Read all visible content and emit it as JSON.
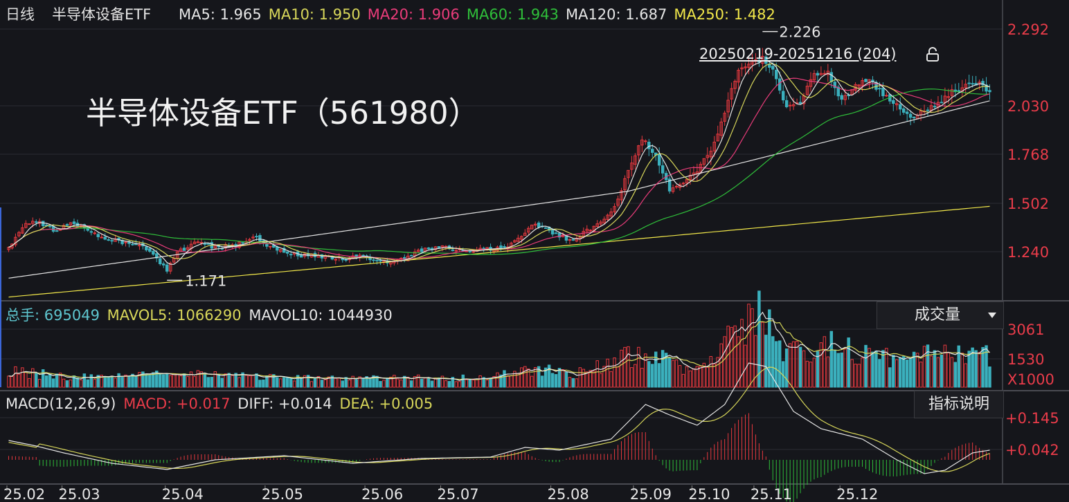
{
  "header": {
    "period": "日线",
    "name": "半导体设备ETF",
    "ma": [
      {
        "label": "MA5: ",
        "value": "1.965",
        "color": "#e6e6e6"
      },
      {
        "label": "MA10: ",
        "value": "1.950",
        "color": "#d8d75a"
      },
      {
        "label": "MA20: ",
        "value": "1.906",
        "color": "#ea3c7a"
      },
      {
        "label": "MA60: ",
        "value": "1.943",
        "color": "#2fbf3a"
      },
      {
        "label": "MA120: ",
        "value": "1.687",
        "color": "#e6e6e6"
      },
      {
        "label": "MA250: ",
        "value": "1.482",
        "color": "#f2e84a"
      }
    ]
  },
  "overlay_title": "半导体设备ETF（561980）",
  "range_label": "20250219-20251216 (204)",
  "volume_header": {
    "total_label": "总手: ",
    "total_value": "695049",
    "mavol5_label": "MAVOL5: ",
    "mavol5_value": "1066290",
    "mavol10_label": "MAVOL10: ",
    "mavol10_value": "1044930"
  },
  "volume_dropdown": "成交量",
  "macd_header": {
    "label": "MACD(12,26,9)",
    "macd_label": "MACD: ",
    "macd_value": "+0.017",
    "diff_label": "DIFF: ",
    "diff_value": "+0.014",
    "dea_label": "DEA: ",
    "dea_value": "+0.005"
  },
  "indicator_button": "指标说明",
  "colors": {
    "background": "#15161b",
    "grid": "#2b2c33",
    "up": "#e8393f",
    "down": "#3bb0bd",
    "axis_text": "#ea3c4a",
    "ma5": "#e6e6e6",
    "ma10": "#d8d75a",
    "ma20": "#ea3c7a",
    "ma60": "#2fbf3a",
    "ma120": "#e6e6e6",
    "ma250": "#f2e84a",
    "diff": "#e6e6e6",
    "dea": "#d8d75a",
    "macd_pos": "#e8393f",
    "macd_neg": "#2fbf3a"
  },
  "chart_data": {
    "type": "candlestick",
    "title": "半导体设备ETF（561980）",
    "price_axis": {
      "ticks": [
        "2.292",
        "2.030",
        "1.768",
        "1.502",
        "1.240"
      ],
      "range": [
        1.09,
        2.36
      ]
    },
    "volume_axis": {
      "ticks": [
        "3061",
        "1530"
      ],
      "unit": "X1000",
      "range": [
        0,
        3350
      ]
    },
    "macd_axis": {
      "ticks": [
        "+0.145",
        "+0.042"
      ],
      "range": [
        -0.06,
        0.185
      ]
    },
    "x_ticks": [
      "25.02",
      "25.03",
      "25.04",
      "25.05",
      "25.06",
      "25.07",
      "25.08",
      "25.09",
      "25.10",
      "25.11",
      "25.12"
    ],
    "x_tick_index": [
      0,
      16,
      46,
      75,
      104,
      126,
      158,
      182,
      199,
      217,
      242
    ],
    "high_marker": {
      "value": "2.226",
      "index": 219
    },
    "low_marker": {
      "value": "1.171",
      "index": 46
    },
    "close_anchors": [
      [
        0,
        1.31
      ],
      [
        5,
        1.41
      ],
      [
        9,
        1.42
      ],
      [
        14,
        1.38
      ],
      [
        18,
        1.42
      ],
      [
        24,
        1.37
      ],
      [
        30,
        1.34
      ],
      [
        37,
        1.32
      ],
      [
        42,
        1.29
      ],
      [
        46,
        1.21
      ],
      [
        49,
        1.29
      ],
      [
        55,
        1.33
      ],
      [
        60,
        1.31
      ],
      [
        66,
        1.32
      ],
      [
        72,
        1.35
      ],
      [
        78,
        1.3
      ],
      [
        84,
        1.28
      ],
      [
        90,
        1.27
      ],
      [
        96,
        1.26
      ],
      [
        102,
        1.27
      ],
      [
        108,
        1.25
      ],
      [
        114,
        1.26
      ],
      [
        120,
        1.3
      ],
      [
        126,
        1.31
      ],
      [
        132,
        1.3
      ],
      [
        138,
        1.3
      ],
      [
        144,
        1.31
      ],
      [
        150,
        1.37
      ],
      [
        153,
        1.41
      ],
      [
        158,
        1.37
      ],
      [
        164,
        1.34
      ],
      [
        168,
        1.38
      ],
      [
        172,
        1.42
      ],
      [
        176,
        1.48
      ],
      [
        180,
        1.63
      ],
      [
        184,
        1.77
      ],
      [
        188,
        1.7
      ],
      [
        192,
        1.55
      ],
      [
        196,
        1.58
      ],
      [
        200,
        1.64
      ],
      [
        204,
        1.72
      ],
      [
        208,
        1.88
      ],
      [
        212,
        2.07
      ],
      [
        216,
        2.1
      ],
      [
        219,
        2.11
      ],
      [
        222,
        2.06
      ],
      [
        226,
        1.9
      ],
      [
        230,
        1.93
      ],
      [
        234,
        2.04
      ],
      [
        238,
        2.05
      ],
      [
        242,
        1.93
      ],
      [
        246,
        2.0
      ],
      [
        250,
        2.02
      ],
      [
        254,
        1.96
      ],
      [
        258,
        1.92
      ],
      [
        262,
        1.86
      ],
      [
        266,
        1.89
      ],
      [
        270,
        1.92
      ],
      [
        274,
        1.97
      ],
      [
        278,
        2.0
      ],
      [
        282,
        2.01
      ],
      [
        285,
        1.97
      ]
    ],
    "volume_anchors": [
      [
        0,
        640
      ],
      [
        20,
        380
      ],
      [
        50,
        520
      ],
      [
        80,
        360
      ],
      [
        110,
        360
      ],
      [
        140,
        380
      ],
      [
        150,
        720
      ],
      [
        165,
        560
      ],
      [
        180,
        1250
      ],
      [
        190,
        1100
      ],
      [
        200,
        600
      ],
      [
        205,
        1500
      ],
      [
        212,
        2500
      ],
      [
        218,
        2800
      ],
      [
        225,
        1500
      ],
      [
        232,
        1300
      ],
      [
        240,
        1700
      ],
      [
        250,
        1250
      ],
      [
        260,
        1150
      ],
      [
        270,
        1250
      ],
      [
        280,
        1350
      ],
      [
        285,
        1200
      ]
    ],
    "macd_anchors": [
      [
        0,
        0.028
      ],
      [
        8,
        0.02
      ],
      [
        16,
        0.01
      ],
      [
        30,
        -0.005
      ],
      [
        46,
        -0.014
      ],
      [
        60,
        0.0
      ],
      [
        80,
        0.006
      ],
      [
        100,
        -0.005
      ],
      [
        120,
        0.002
      ],
      [
        140,
        0.004
      ],
      [
        150,
        0.018
      ],
      [
        160,
        0.014
      ],
      [
        175,
        0.03
      ],
      [
        185,
        0.08
      ],
      [
        192,
        0.065
      ],
      [
        200,
        0.05
      ],
      [
        208,
        0.08
      ],
      [
        215,
        0.14
      ],
      [
        220,
        0.135
      ],
      [
        228,
        0.07
      ],
      [
        236,
        0.045
      ],
      [
        248,
        0.03
      ],
      [
        258,
        0.0
      ],
      [
        266,
        -0.02
      ],
      [
        272,
        -0.015
      ],
      [
        280,
        0.01
      ],
      [
        285,
        0.014
      ]
    ]
  }
}
